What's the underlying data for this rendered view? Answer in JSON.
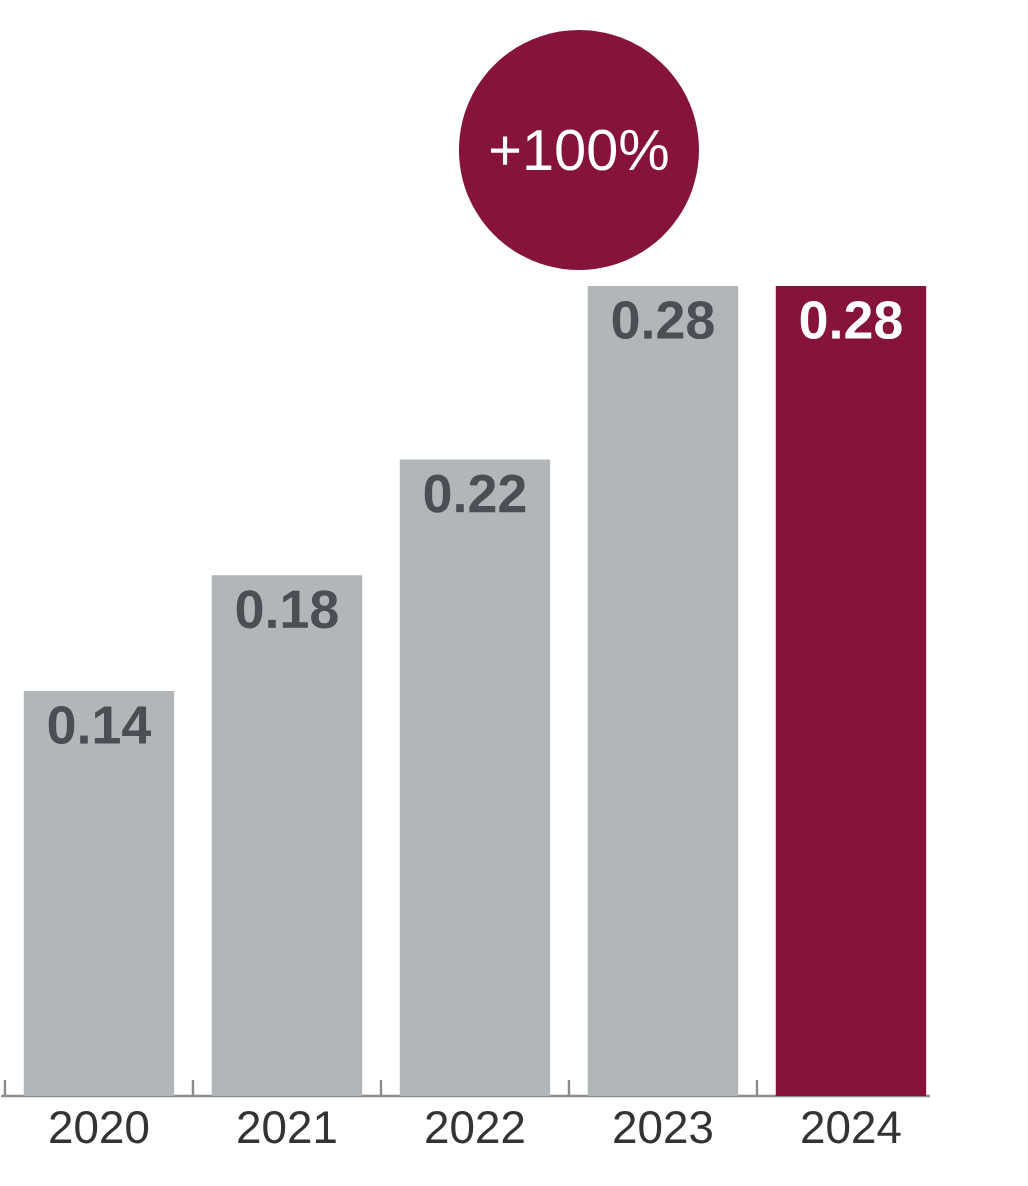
{
  "chart_data": {
    "type": "bar",
    "categories": [
      "2020",
      "2021",
      "2022",
      "2023",
      "2024"
    ],
    "values": [
      0.14,
      0.18,
      0.22,
      0.28,
      0.28
    ],
    "colors": [
      "#b3b6b8",
      "#b3b6b8",
      "#b3b6b8",
      "#b3b6b8",
      "#85133a"
    ],
    "value_labels": [
      "0.14",
      "0.18",
      "0.22",
      "0.28",
      "0.28"
    ],
    "annotations": [
      "+100%"
    ],
    "grid": false
  }
}
